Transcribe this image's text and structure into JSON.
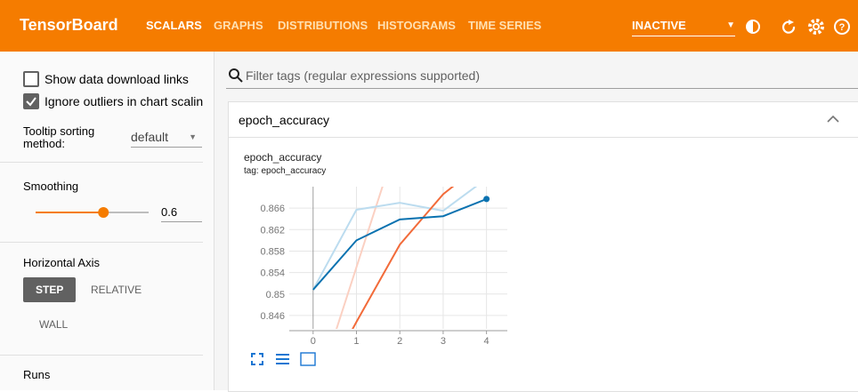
{
  "header": {
    "title": "TensorBoard",
    "tabs": [
      "SCALARS",
      "GRAPHS",
      "DISTRIBUTIONS",
      "HISTOGRAMS",
      "TIME SERIES"
    ],
    "status": "INACTIVE"
  },
  "sidebar": {
    "checkboxes": [
      {
        "label": "Show data download links",
        "checked": false
      },
      {
        "label": "Ignore outliers in chart scaling",
        "checked": true
      }
    ],
    "tooltip_sorting": {
      "label": "Tooltip sorting method:",
      "value": "default"
    },
    "smoothing": {
      "label": "Smoothing",
      "value": 0.6
    },
    "horizontal_axis": {
      "label": "Horizontal Axis",
      "options": [
        "STEP",
        "RELATIVE",
        "WALL"
      ],
      "selected": "STEP"
    },
    "runs": {
      "label": "Runs"
    }
  },
  "main": {
    "filter_placeholder": "Filter tags (regular expressions supported)",
    "card_title": "epoch_accuracy"
  },
  "chart_data": {
    "type": "line",
    "title": "epoch_accuracy",
    "subtitle": "tag: epoch_accuracy",
    "x": [
      0,
      1,
      2,
      3,
      4
    ],
    "series": [
      {
        "color": "#fbd0c2",
        "values": [
          0.83,
          0.855,
          0.88,
          null,
          null
        ]
      },
      {
        "color": "#bcdcef",
        "values": [
          0.8508,
          0.8657,
          0.867,
          0.8655,
          0.8715
        ]
      },
      {
        "color": "#f26b3a",
        "values": [
          0.83,
          0.8448,
          0.8592,
          0.8686,
          0.875
        ]
      },
      {
        "color": "#0a72b0",
        "values": [
          0.8508,
          0.86,
          0.8639,
          0.8645,
          0.8677
        ]
      }
    ],
    "xlim": [
      -0.55,
      4.48
    ],
    "ylim": [
      0.8435,
      0.87
    ],
    "xticks": [
      0,
      1,
      2,
      3,
      4
    ],
    "yticks": [
      0.846,
      0.85,
      0.854,
      0.858,
      0.862,
      0.866
    ],
    "grid": true
  }
}
